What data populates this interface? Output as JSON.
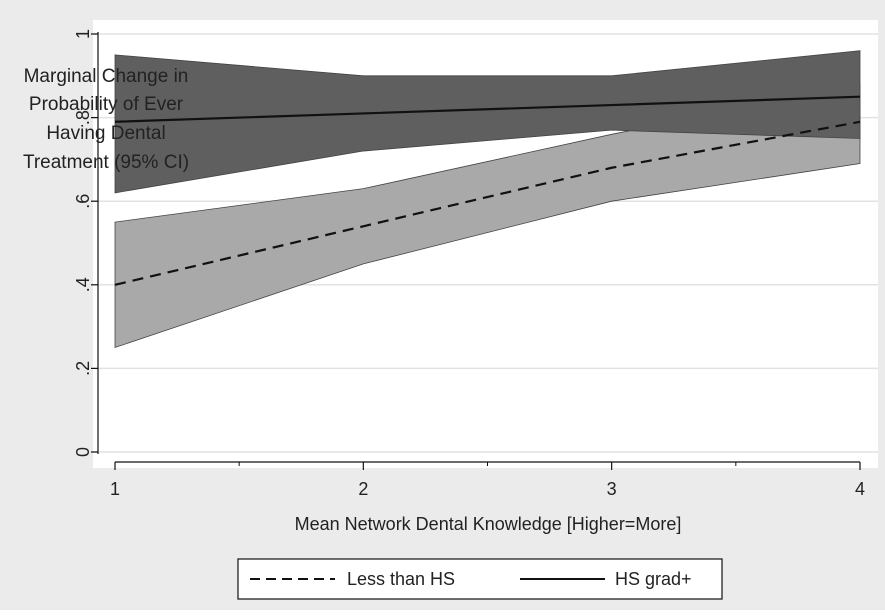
{
  "chart_data": {
    "type": "line",
    "title": "",
    "ylabel_lines": [
      "Marginal Change in",
      "Probability of Ever",
      "Having Dental",
      "Treatment (95% CI)"
    ],
    "xlabel": "Mean Network Dental Knowledge [Higher=More]",
    "x": [
      1,
      2,
      3,
      4
    ],
    "xlim": [
      1,
      4
    ],
    "ylim": [
      0,
      1
    ],
    "x_ticks": [
      {
        "value": 1,
        "label": "1"
      },
      {
        "value": 2,
        "label": "2"
      },
      {
        "value": 3,
        "label": "3"
      },
      {
        "value": 4,
        "label": "4"
      }
    ],
    "x_minor_ticks": [
      1.5,
      2.5,
      3.5
    ],
    "y_ticks": [
      {
        "value": 0,
        "label": "0"
      },
      {
        "value": 0.2,
        "label": ".2"
      },
      {
        "value": 0.4,
        "label": ".4"
      },
      {
        "value": 0.6,
        "label": ".6"
      },
      {
        "value": 0.8,
        "label": ".8"
      },
      {
        "value": 1,
        "label": "1"
      }
    ],
    "grid": true,
    "legend_position": "bottom",
    "colors": {
      "panel_bg": "#ebebeb",
      "plot_bg": "#ffffff",
      "band_less_than_hs": "#a9a9a9",
      "band_hs_grad": "#5f5f5f",
      "line": "#111111",
      "grid": "#e2e2e2"
    },
    "series": [
      {
        "name": "Less than HS",
        "style": "dashed",
        "values": [
          0.4,
          0.54,
          0.68,
          0.79
        ],
        "ci_lower": [
          0.25,
          0.45,
          0.6,
          0.69
        ],
        "ci_upper": [
          0.55,
          0.63,
          0.76,
          0.88
        ]
      },
      {
        "name": "HS grad+",
        "style": "solid",
        "values": [
          0.79,
          0.81,
          0.83,
          0.85
        ],
        "ci_lower": [
          0.62,
          0.72,
          0.77,
          0.75
        ],
        "ci_upper": [
          0.95,
          0.9,
          0.9,
          0.96
        ]
      }
    ]
  }
}
